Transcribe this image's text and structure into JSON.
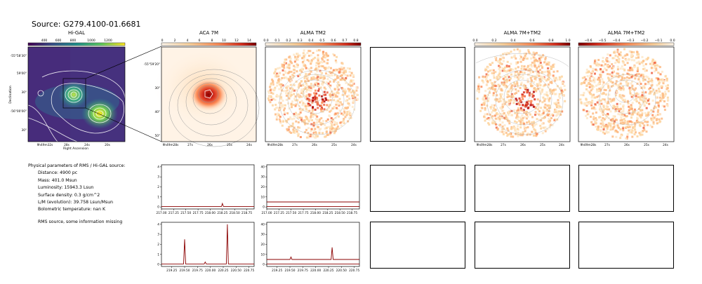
{
  "source_title": "Source: G279.4100-01.6681",
  "params": {
    "heading": "Physical parameters of RMS / Hi-GAL source:",
    "lines": [
      "Distance: 4900 pc",
      "Mass: 401.0 Msun",
      "Luminosity: 15943.3 Lsun",
      "Surface density: 0.3 g/cm^2",
      "L/M (evolution): 39.758 Lsun/Msun",
      "Bolometric temperature: nan K"
    ],
    "note": "RMS source, some information missing"
  },
  "panels": {
    "higal": {
      "title": "Hi-GAL",
      "cbar_ticks": [
        "400",
        "600",
        "800",
        "1000",
        "1200"
      ],
      "cbar_colors": [
        "#440154",
        "#3b528b",
        "#21918c",
        "#5ec962",
        "#fde725"
      ],
      "y_ticks": [
        "-55°58'30\"",
        "59'00\"",
        "30\"",
        "-56°00'00\"",
        "30\""
      ],
      "y_label": "Declination",
      "x_ticks": [
        "9h49m32s",
        "28s",
        "24s",
        "20s"
      ],
      "x_label": "Right Ascension"
    },
    "aca": {
      "title": "ACA 7M",
      "cbar_ticks": [
        "0",
        "2",
        "4",
        "6",
        "8",
        "10",
        "12",
        "14"
      ],
      "y_ticks": [
        "-55°59'20\"",
        "30\"",
        "40\"",
        "50\""
      ],
      "x_ticks": [
        "9h49m28s",
        "27s",
        "26s",
        "25s",
        "24s"
      ]
    },
    "tm2": {
      "title": "ALMA TM2",
      "cbar_ticks": [
        "0.0",
        "0.1",
        "0.2",
        "0.3",
        "0.4",
        "0.5",
        "0.6",
        "0.7",
        "0.8"
      ],
      "x_ticks": [
        "9h49m28s",
        "27s",
        "26s",
        "25s",
        "24s"
      ]
    },
    "combo1": {
      "title": "ALMA 7M+TM2",
      "cbar_ticks": [
        "0.0",
        "0.2",
        "0.4",
        "0.6",
        "0.8",
        "1.0"
      ],
      "x_ticks": [
        "9h49m28s",
        "27s",
        "26s",
        "25s",
        "24s"
      ]
    },
    "combo2": {
      "title": "ALMA 7M+TM2",
      "cbar_ticks": [
        "−0.6",
        "−0.5",
        "−0.4",
        "−0.3",
        "−0.2",
        "−0.1",
        "0.0"
      ],
      "x_ticks": [
        "9h49m28s",
        "27s",
        "26s",
        "25s",
        "24s"
      ]
    }
  },
  "colors": {
    "spectrum": "#8b0000",
    "contour": "#999999",
    "heat_low": "#fff5eb",
    "heat_high": "#b30000"
  },
  "chart_data": [
    {
      "type": "line",
      "panel": "ACA 7M spectrum, upper",
      "x_ticks": [
        "217.00",
        "217.25",
        "217.50",
        "217.75",
        "218.00",
        "218.25",
        "218.50",
        "218.75"
      ],
      "y_ticks": [
        "0",
        "1",
        "2",
        "3",
        "4"
      ],
      "xlim": [
        217.0,
        218.9
      ],
      "ylim": [
        -0.2,
        4.2
      ],
      "series": [
        {
          "x": [
            217.0,
            217.5,
            218.0,
            218.23,
            218.25,
            218.27,
            218.5,
            218.9
          ],
          "y": [
            0.05,
            0.05,
            0.05,
            0.05,
            0.35,
            0.05,
            0.05,
            0.05
          ]
        }
      ]
    },
    {
      "type": "line",
      "panel": "ALMA TM2 spectrum, upper",
      "x_ticks": [
        "217.00",
        "217.25",
        "217.50",
        "217.75",
        "218.00",
        "218.25",
        "218.50",
        "218.75"
      ],
      "y_ticks": [
        "0",
        "10",
        "20",
        "30",
        "40"
      ],
      "xlim": [
        217.0,
        218.9
      ],
      "ylim": [
        -2,
        42
      ],
      "series": [
        {
          "x": [
            217.0,
            218.9
          ],
          "y": [
            5,
            5
          ]
        },
        {
          "x": [
            217.0,
            218.9
          ],
          "y": [
            0.5,
            0.5
          ]
        }
      ]
    },
    {
      "type": "line",
      "panel": "ACA 7M spectrum, lower",
      "x_ticks": [
        "219.25",
        "219.50",
        "219.75",
        "220.00",
        "220.25",
        "220.50",
        "220.75"
      ],
      "y_ticks": [
        "0",
        "1",
        "2",
        "3",
        "4"
      ],
      "xlim": [
        219.05,
        220.85
      ],
      "ylim": [
        -0.2,
        4.2
      ],
      "series": [
        {
          "x": [
            219.05,
            219.48,
            219.5,
            219.52,
            219.88,
            219.9,
            219.92,
            220.31,
            220.33,
            220.35,
            220.85
          ],
          "y": [
            0.05,
            0.05,
            2.5,
            0.05,
            0.05,
            0.25,
            0.05,
            0.05,
            4.0,
            0.05,
            0.05
          ]
        }
      ]
    },
    {
      "type": "line",
      "panel": "ALMA TM2 spectrum, lower",
      "x_ticks": [
        "219.25",
        "219.50",
        "219.75",
        "220.00",
        "220.25",
        "220.50",
        "220.75"
      ],
      "y_ticks": [
        "0",
        "10",
        "20",
        "30",
        "40"
      ],
      "xlim": [
        219.05,
        220.85
      ],
      "ylim": [
        -2,
        42
      ],
      "series": [
        {
          "x": [
            219.05,
            219.5,
            219.52,
            219.54,
            220.3,
            220.32,
            220.34,
            220.85
          ],
          "y": [
            5,
            5,
            7.5,
            5,
            5,
            17,
            5,
            5
          ]
        },
        {
          "x": [
            219.05,
            220.85
          ],
          "y": [
            0.5,
            0.5
          ]
        }
      ]
    }
  ]
}
